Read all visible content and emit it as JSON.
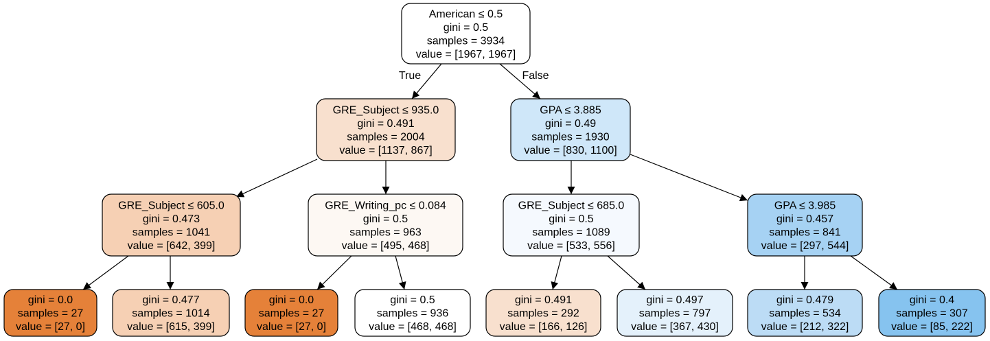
{
  "tree": {
    "edge_labels": {
      "true_label": "True",
      "false_label": "False"
    },
    "colors": {
      "orange_strong": "#e58139",
      "orange_medium": "#f6d0b4",
      "orange_light": "#f8e0ce",
      "orange_faint": "#fdf8f3",
      "white": "#ffffff",
      "blue_faint": "#f5f9fe",
      "blue_light": "#e4f1fb",
      "blue_pale": "#cfe7f9",
      "blue_medium": "#bcdcf5",
      "blue_mid": "#a6d2f3",
      "blue_strong": "#86c3ef"
    },
    "nodes": [
      {
        "id": "root",
        "fill": "white",
        "lines": [
          "American ≤ 0.5",
          "gini = 0.5",
          "samples = 3934",
          "value = [1967, 1967]"
        ]
      },
      {
        "id": "n1",
        "fill": "orange_light",
        "lines": [
          "GRE_Subject ≤ 935.0",
          "gini = 0.491",
          "samples = 2004",
          "value = [1137, 867]"
        ]
      },
      {
        "id": "n2",
        "fill": "blue_pale",
        "lines": [
          "GPA ≤ 3.885",
          "gini = 0.49",
          "samples = 1930",
          "value = [830, 1100]"
        ]
      },
      {
        "id": "n3",
        "fill": "orange_medium",
        "lines": [
          "GRE_Subject ≤ 605.0",
          "gini = 0.473",
          "samples = 1041",
          "value = [642, 399]"
        ]
      },
      {
        "id": "n4",
        "fill": "orange_faint",
        "lines": [
          "GRE_Writing_pc ≤ 0.084",
          "gini = 0.5",
          "samples = 963",
          "value = [495, 468]"
        ]
      },
      {
        "id": "n5",
        "fill": "blue_faint",
        "lines": [
          "GRE_Subject ≤ 685.0",
          "gini = 0.5",
          "samples = 1089",
          "value = [533, 556]"
        ]
      },
      {
        "id": "n6",
        "fill": "blue_mid",
        "lines": [
          "GPA ≤ 3.985",
          "gini = 0.457",
          "samples = 841",
          "value = [297, 544]"
        ]
      },
      {
        "id": "l1",
        "fill": "orange_strong",
        "lines": [
          "gini = 0.0",
          "samples = 27",
          "value = [27, 0]"
        ]
      },
      {
        "id": "l2",
        "fill": "orange_medium",
        "lines": [
          "gini = 0.477",
          "samples = 1014",
          "value = [615, 399]"
        ]
      },
      {
        "id": "l3",
        "fill": "orange_strong",
        "lines": [
          "gini = 0.0",
          "samples = 27",
          "value = [27, 0]"
        ]
      },
      {
        "id": "l4",
        "fill": "white",
        "lines": [
          "gini = 0.5",
          "samples = 936",
          "value = [468, 468]"
        ]
      },
      {
        "id": "l5",
        "fill": "orange_light",
        "lines": [
          "gini = 0.491",
          "samples = 292",
          "value = [166, 126]"
        ]
      },
      {
        "id": "l6",
        "fill": "blue_light",
        "lines": [
          "gini = 0.497",
          "samples = 797",
          "value = [367, 430]"
        ]
      },
      {
        "id": "l7",
        "fill": "blue_medium",
        "lines": [
          "gini = 0.479",
          "samples = 534",
          "value = [212, 322]"
        ]
      },
      {
        "id": "l8",
        "fill": "blue_strong",
        "lines": [
          "gini = 0.4",
          "samples = 307",
          "value = [85, 222]"
        ]
      }
    ],
    "edges": [
      {
        "from": "root",
        "to": "n1",
        "label": "true_label"
      },
      {
        "from": "root",
        "to": "n2",
        "label": "false_label"
      },
      {
        "from": "n1",
        "to": "n3"
      },
      {
        "from": "n1",
        "to": "n4"
      },
      {
        "from": "n2",
        "to": "n5"
      },
      {
        "from": "n2",
        "to": "n6"
      },
      {
        "from": "n3",
        "to": "l1"
      },
      {
        "from": "n3",
        "to": "l2"
      },
      {
        "from": "n4",
        "to": "l3"
      },
      {
        "from": "n4",
        "to": "l4"
      },
      {
        "from": "n5",
        "to": "l5"
      },
      {
        "from": "n5",
        "to": "l6"
      },
      {
        "from": "n6",
        "to": "l7"
      },
      {
        "from": "n6",
        "to": "l8"
      }
    ]
  }
}
